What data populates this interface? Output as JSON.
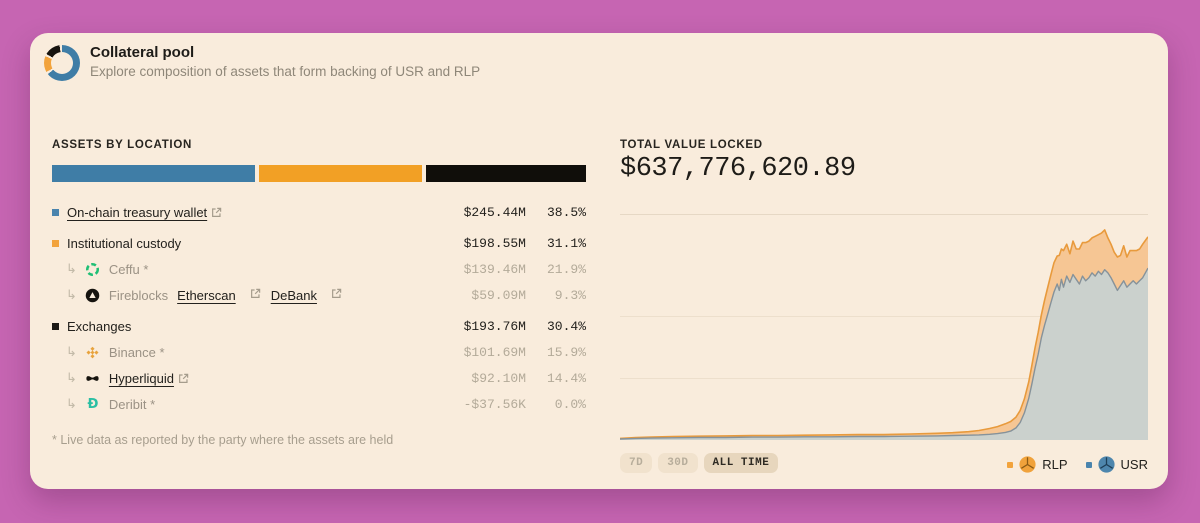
{
  "header": {
    "title": "Collateral pool",
    "subtitle": "Explore composition of assets that form backing of USR and RLP"
  },
  "assets": {
    "section_title": "ASSETS BY LOCATION",
    "bar": [
      {
        "name": "on-chain-treasury",
        "color": "#3f7da6",
        "pct": 38.5
      },
      {
        "name": "institutional-custody",
        "color": "#f2a025",
        "pct": 31.1
      },
      {
        "name": "exchanges",
        "color": "#100e0a",
        "pct": 30.4
      }
    ],
    "rows": [
      {
        "level": "main",
        "bullet": "#4a84ad",
        "label": "On-chain treasury wallet",
        "link": true,
        "external": true,
        "value": "$245.44M",
        "pct": "38.5%"
      },
      {
        "level": "main",
        "bullet": "#f2a33c",
        "label": "Institutional custody",
        "value": "$198.55M",
        "pct": "31.1%"
      },
      {
        "level": "sub",
        "icon": "ceffu",
        "label": "Ceffu",
        "asterisk": true,
        "value": "$139.46M",
        "pct": "21.9%"
      },
      {
        "level": "sub",
        "icon": "fireblocks",
        "label": "Fireblocks",
        "links": [
          "Etherscan",
          "DeBank"
        ],
        "value": "$59.09M",
        "pct": "9.3%"
      },
      {
        "level": "main",
        "bullet": "#1c1915",
        "label": "Exchanges",
        "value": "$193.76M",
        "pct": "30.4%"
      },
      {
        "level": "sub",
        "icon": "binance",
        "label": "Binance",
        "asterisk": true,
        "value": "$101.69M",
        "pct": "15.9%"
      },
      {
        "level": "sub",
        "icon": "hyperliquid",
        "label": "Hyperliquid",
        "link": true,
        "external": true,
        "value": "$92.10M",
        "pct": "14.4%"
      },
      {
        "level": "sub",
        "icon": "deribit",
        "label": "Deribit",
        "asterisk": true,
        "value": "-$37.56K",
        "pct": "0.0%"
      }
    ],
    "footnote": "* Live data as reported by the party where the assets are held"
  },
  "tvl": {
    "section_title": "TOTAL VALUE LOCKED",
    "value": "$637,776,620.89"
  },
  "controls": {
    "ranges": [
      {
        "label": "7D",
        "active": false
      },
      {
        "label": "30D",
        "active": false
      },
      {
        "label": "ALL TIME",
        "active": true
      }
    ]
  },
  "legend": [
    {
      "label": "RLP",
      "color": "#f2a33c",
      "coin_fill": "#f0a23b",
      "coin_line": "#8a5a14"
    },
    {
      "label": "USR",
      "color": "#4a84ad",
      "coin_fill": "#4e86ad",
      "coin_line": "#1d3e57"
    }
  ],
  "chart_data": {
    "type": "area",
    "stacked": true,
    "units": "USD millions",
    "xrange_selected": "ALL TIME",
    "ylim": [
      0,
      710
    ],
    "grid": true,
    "legend_position": "bottom-right",
    "x": [
      0,
      0.03,
      0.06,
      0.1,
      0.15,
      0.2,
      0.25,
      0.3,
      0.35,
      0.4,
      0.45,
      0.5,
      0.55,
      0.6,
      0.63,
      0.66,
      0.68,
      0.7,
      0.715,
      0.73,
      0.74,
      0.75,
      0.758,
      0.766,
      0.774,
      0.78,
      0.786,
      0.792,
      0.798,
      0.804,
      0.81,
      0.816,
      0.822,
      0.828,
      0.832,
      0.836,
      0.84,
      0.846,
      0.852,
      0.858,
      0.864,
      0.87,
      0.876,
      0.882,
      0.888,
      0.894,
      0.9,
      0.906,
      0.912,
      0.918,
      0.924,
      0.93,
      0.936,
      0.942,
      0.948,
      0.954,
      0.96,
      0.966,
      0.972,
      0.978,
      0.984,
      0.99,
      1
    ],
    "series": [
      {
        "name": "USR",
        "fill": "#cbd1cd",
        "line": "#86929a",
        "values": [
          3,
          5,
          6,
          7,
          8,
          8,
          9,
          9,
          10,
          10,
          11,
          11,
          12,
          13,
          14,
          15,
          16,
          18,
          20,
          24,
          28,
          38,
          55,
          85,
          130,
          175,
          225,
          270,
          320,
          360,
          395,
          430,
          465,
          490,
          470,
          505,
          480,
          515,
          495,
          520,
          505,
          490,
          515,
          500,
          510,
          525,
          515,
          530,
          520,
          535,
          525,
          510,
          490,
          470,
          485,
          500,
          480,
          490,
          500,
          490,
          500,
          510,
          540
        ]
      },
      {
        "name": "RLP",
        "fill": "#f6c694",
        "line": "#e89a3c",
        "values": [
          2,
          3,
          3,
          4,
          4,
          5,
          5,
          5,
          5,
          6,
          6,
          6,
          7,
          8,
          9,
          11,
          14,
          18,
          22,
          27,
          30,
          34,
          38,
          44,
          52,
          58,
          64,
          68,
          72,
          78,
          84,
          88,
          92,
          88,
          110,
          95,
          115,
          100,
          90,
          105,
          95,
          110,
          105,
          120,
          115,
          110,
          125,
          115,
          130,
          125,
          110,
          105,
          100,
          105,
          95,
          110,
          95,
          105,
          95,
          105,
          100,
          105,
          98
        ]
      }
    ]
  }
}
